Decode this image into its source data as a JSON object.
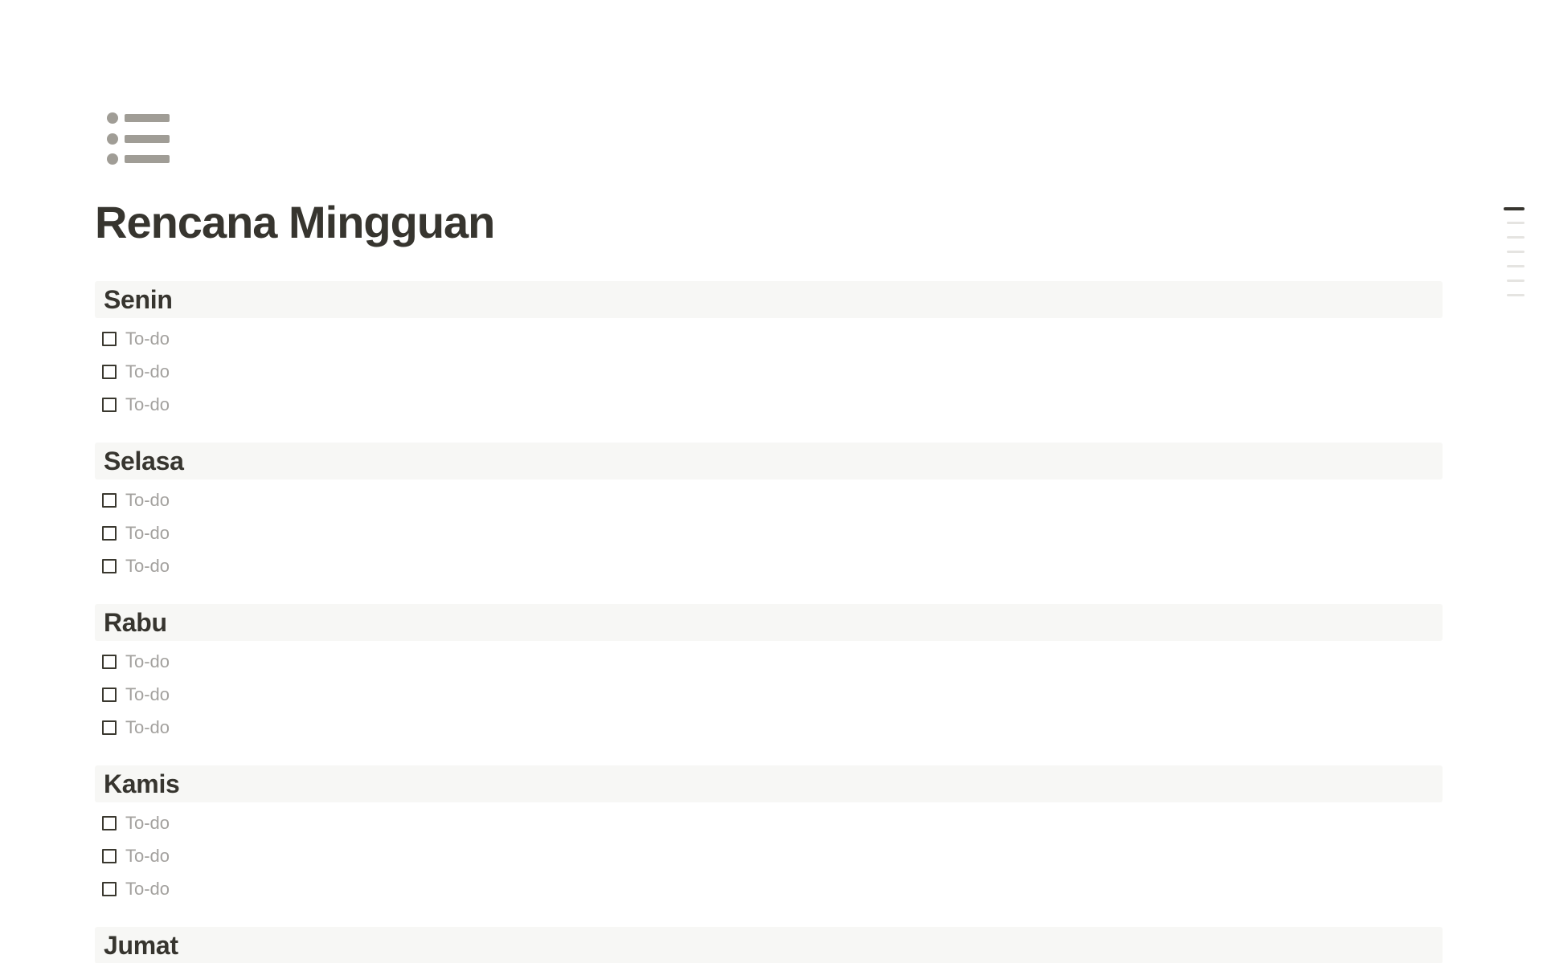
{
  "page": {
    "title": "Rencana Mingguan",
    "icon": "bulleted-list-icon"
  },
  "sections": [
    {
      "day": "Senin",
      "todos": [
        "To-do",
        "To-do",
        "To-do"
      ]
    },
    {
      "day": "Selasa",
      "todos": [
        "To-do",
        "To-do",
        "To-do"
      ]
    },
    {
      "day": "Rabu",
      "todos": [
        "To-do",
        "To-do",
        "To-do"
      ]
    },
    {
      "day": "Kamis",
      "todos": [
        "To-do",
        "To-do",
        "To-do"
      ]
    },
    {
      "day": "Jumat",
      "todos": []
    }
  ],
  "toc": {
    "total_lines": 7,
    "active_line_index": 0
  },
  "colors": {
    "heading_background": "#f7f7f5",
    "text_primary": "#37352f",
    "todo_placeholder": "#a3a19e",
    "icon_gray": "#a09d96",
    "checkbox_border": "#3a382f",
    "toc_active": "#37352f",
    "toc_inactive": "#e5e4e1"
  }
}
